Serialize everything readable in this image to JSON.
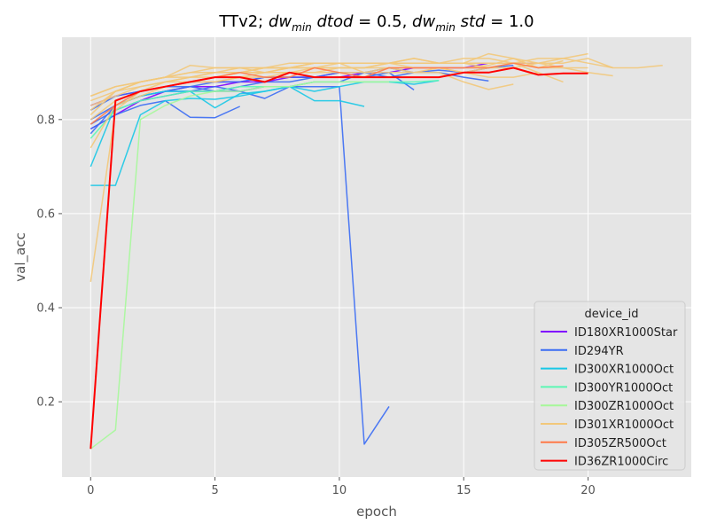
{
  "chart_data": {
    "type": "line",
    "title_parts": {
      "a": "TTv2; ",
      "b": "dw",
      "c": "min",
      "d": " dtod",
      "e": " = 0.5,  ",
      "f": "dw",
      "g": "min",
      "h": " std",
      "i": " = 1.0"
    },
    "xlabel": "epoch",
    "ylabel": "val_acc",
    "xlim": [
      -1.15,
      24.15
    ],
    "ylim": [
      0.04,
      0.975
    ],
    "xticks": [
      0,
      5,
      10,
      15,
      20
    ],
    "yticks": [
      0.2,
      0.4,
      0.6,
      0.8
    ],
    "grid": true,
    "legend": {
      "title": "device_id",
      "placement": "lower right",
      "entries": [
        "ID180XR1000Star",
        "ID294YR",
        "ID300XR1000Oct",
        "ID300YR1000Oct",
        "ID300ZR1000Oct",
        "ID301XR1000Oct",
        "ID305ZR500Oct",
        "ID36ZR1000Circ"
      ]
    },
    "series": [
      {
        "name": "ID180XR1000Star",
        "color": "#8000ff",
        "runs": [
          [
            0.78,
            0.81,
            0.84,
            0.86,
            0.87,
            0.87,
            0.88,
            0.88,
            0.89,
            0.89,
            0.89,
            0.9,
            0.9,
            0.91,
            0.91,
            0.91,
            0.92,
            0.92,
            0.92
          ],
          [
            0.83,
            0.85,
            0.86,
            0.87,
            0.88,
            0.88,
            0.88,
            0.89,
            0.89,
            0.89,
            0.9
          ]
        ]
      },
      {
        "name": "ID294YR",
        "color": "#3a6cf4",
        "runs": [
          [
            0.78,
            0.81,
            0.83,
            0.84,
            0.805,
            0.804,
            0.828
          ],
          [
            0.77,
            0.83,
            0.85,
            0.86,
            0.87,
            0.86,
            0.86,
            0.845,
            0.87,
            0.87,
            0.87,
            0.11,
            0.19
          ],
          [
            0.82,
            0.85,
            0.86,
            0.87,
            0.87,
            0.88,
            0.88,
            0.89,
            0.89,
            0.89,
            0.9,
            0.9,
            0.89,
            0.9,
            0.9,
            0.89,
            0.882
          ],
          [
            0.8,
            0.83,
            0.85,
            0.86,
            0.86,
            0.87,
            0.86,
            0.87,
            0.87,
            0.88,
            0.88,
            0.9,
            0.91,
            0.9,
            0.905,
            0.9,
            0.91,
            0.915
          ],
          [
            0.79,
            0.82,
            0.84,
            0.85,
            0.86,
            0.86,
            0.87,
            0.88,
            0.88,
            0.89,
            0.89,
            0.89,
            0.9,
            0.863
          ]
        ]
      },
      {
        "name": "ID300XR1000Oct",
        "color": "#18c8e6",
        "runs": [
          [
            0.66,
            0.66,
            0.81,
            0.84,
            0.845,
            0.843,
            0.85,
            0.86,
            0.87,
            0.84,
            0.84,
            0.828
          ],
          [
            0.7,
            0.83,
            0.85,
            0.86,
            0.86,
            0.825,
            0.855,
            0.86,
            0.87,
            0.86,
            0.87,
            0.88,
            0.88,
            0.875,
            0.883
          ]
        ]
      },
      {
        "name": "ID300YR1000Oct",
        "color": "#5cf8b4",
        "runs": [
          [
            0.76,
            0.82,
            0.84,
            0.85,
            0.86,
            0.86,
            0.87,
            0.87,
            0.87,
            0.88,
            0.88,
            0.88,
            0.88,
            0.88,
            0.883
          ]
        ]
      },
      {
        "name": "ID300ZR1000Oct",
        "color": "#a6f89a",
        "runs": [
          [
            0.1,
            0.14,
            0.8,
            0.83,
            0.85,
            0.86,
            0.86,
            0.87,
            0.87,
            0.88,
            0.88,
            0.88,
            0.88
          ]
        ]
      },
      {
        "name": "ID301XR1000Oct",
        "color": "#f2c87a",
        "runs": [
          [
            0.455,
            0.82,
            0.86,
            0.88,
            0.89,
            0.9,
            0.9,
            0.91,
            0.91,
            0.91,
            0.92,
            0.92,
            0.92,
            0.92,
            0.92,
            0.92,
            0.92,
            0.92,
            0.91,
            0.91,
            0.91
          ],
          [
            0.84,
            0.86,
            0.88,
            0.89,
            0.9,
            0.9,
            0.91,
            0.91,
            0.92,
            0.92,
            0.92,
            0.92,
            0.92,
            0.92,
            0.92,
            0.93,
            0.93,
            0.92,
            0.93,
            0.93,
            0.94
          ],
          [
            0.85,
            0.87,
            0.88,
            0.89,
            0.9,
            0.91,
            0.91,
            0.91,
            0.91,
            0.92,
            0.92,
            0.92,
            0.92,
            0.93,
            0.92,
            0.92,
            0.92,
            0.92,
            0.92,
            0.92,
            0.93,
            0.91
          ],
          [
            0.83,
            0.85,
            0.87,
            0.88,
            0.89,
            0.89,
            0.9,
            0.9,
            0.91,
            0.91,
            0.91,
            0.91,
            0.92,
            0.92,
            0.92,
            0.92,
            0.91,
            0.91,
            0.92,
            0.93,
            0.92,
            0.91,
            0.91,
            0.915
          ],
          [
            0.82,
            0.86,
            0.88,
            0.89,
            0.915,
            0.91,
            0.91,
            0.9,
            0.91,
            0.92,
            0.92,
            0.9,
            0.91,
            0.91,
            0.91,
            0.91,
            0.915,
            0.93,
            0.92,
            0.91,
            0.9,
            0.893
          ],
          [
            0.81,
            0.86,
            0.87,
            0.88,
            0.88,
            0.89,
            0.9,
            0.9,
            0.9,
            0.91,
            0.91,
            0.91,
            0.91,
            0.9,
            0.91,
            0.9,
            0.91,
            0.92,
            0.9,
            0.88
          ],
          [
            0.8,
            0.84,
            0.86,
            0.87,
            0.88,
            0.88,
            0.89,
            0.89,
            0.9,
            0.9,
            0.91,
            0.91,
            0.92,
            0.91,
            0.91,
            0.9,
            0.89,
            0.89,
            0.9
          ],
          [
            0.74,
            0.83,
            0.85,
            0.87,
            0.88,
            0.88,
            0.89,
            0.9,
            0.9,
            0.9,
            0.9,
            0.9,
            0.9,
            0.9,
            0.9,
            0.88,
            0.864,
            0.875
          ],
          [
            0.85,
            0.87,
            0.88,
            0.89,
            0.89,
            0.9,
            0.9,
            0.91,
            0.91,
            0.92,
            0.92,
            0.92,
            0.92,
            0.93,
            0.92,
            0.92,
            0.94,
            0.93,
            0.91,
            0.925
          ]
        ]
      },
      {
        "name": "ID305ZR500Oct",
        "color": "#ff7a48",
        "runs": [
          [
            0.79,
            0.83,
            0.86,
            0.87,
            0.88,
            0.89,
            0.9,
            0.89,
            0.89,
            0.91,
            0.9,
            0.89,
            0.91,
            0.91,
            0.91,
            0.91,
            0.91,
            0.92,
            0.91,
            0.914
          ]
        ]
      },
      {
        "name": "ID36ZR1000Circ",
        "color": "#ff0000",
        "width": 2,
        "runs": [
          [
            0.1,
            0.84,
            0.86,
            0.87,
            0.88,
            0.89,
            0.89,
            0.88,
            0.9,
            0.89,
            0.89,
            0.89,
            0.89,
            0.89,
            0.89,
            0.9,
            0.9,
            0.91,
            0.895,
            0.898,
            0.898
          ]
        ]
      }
    ]
  }
}
